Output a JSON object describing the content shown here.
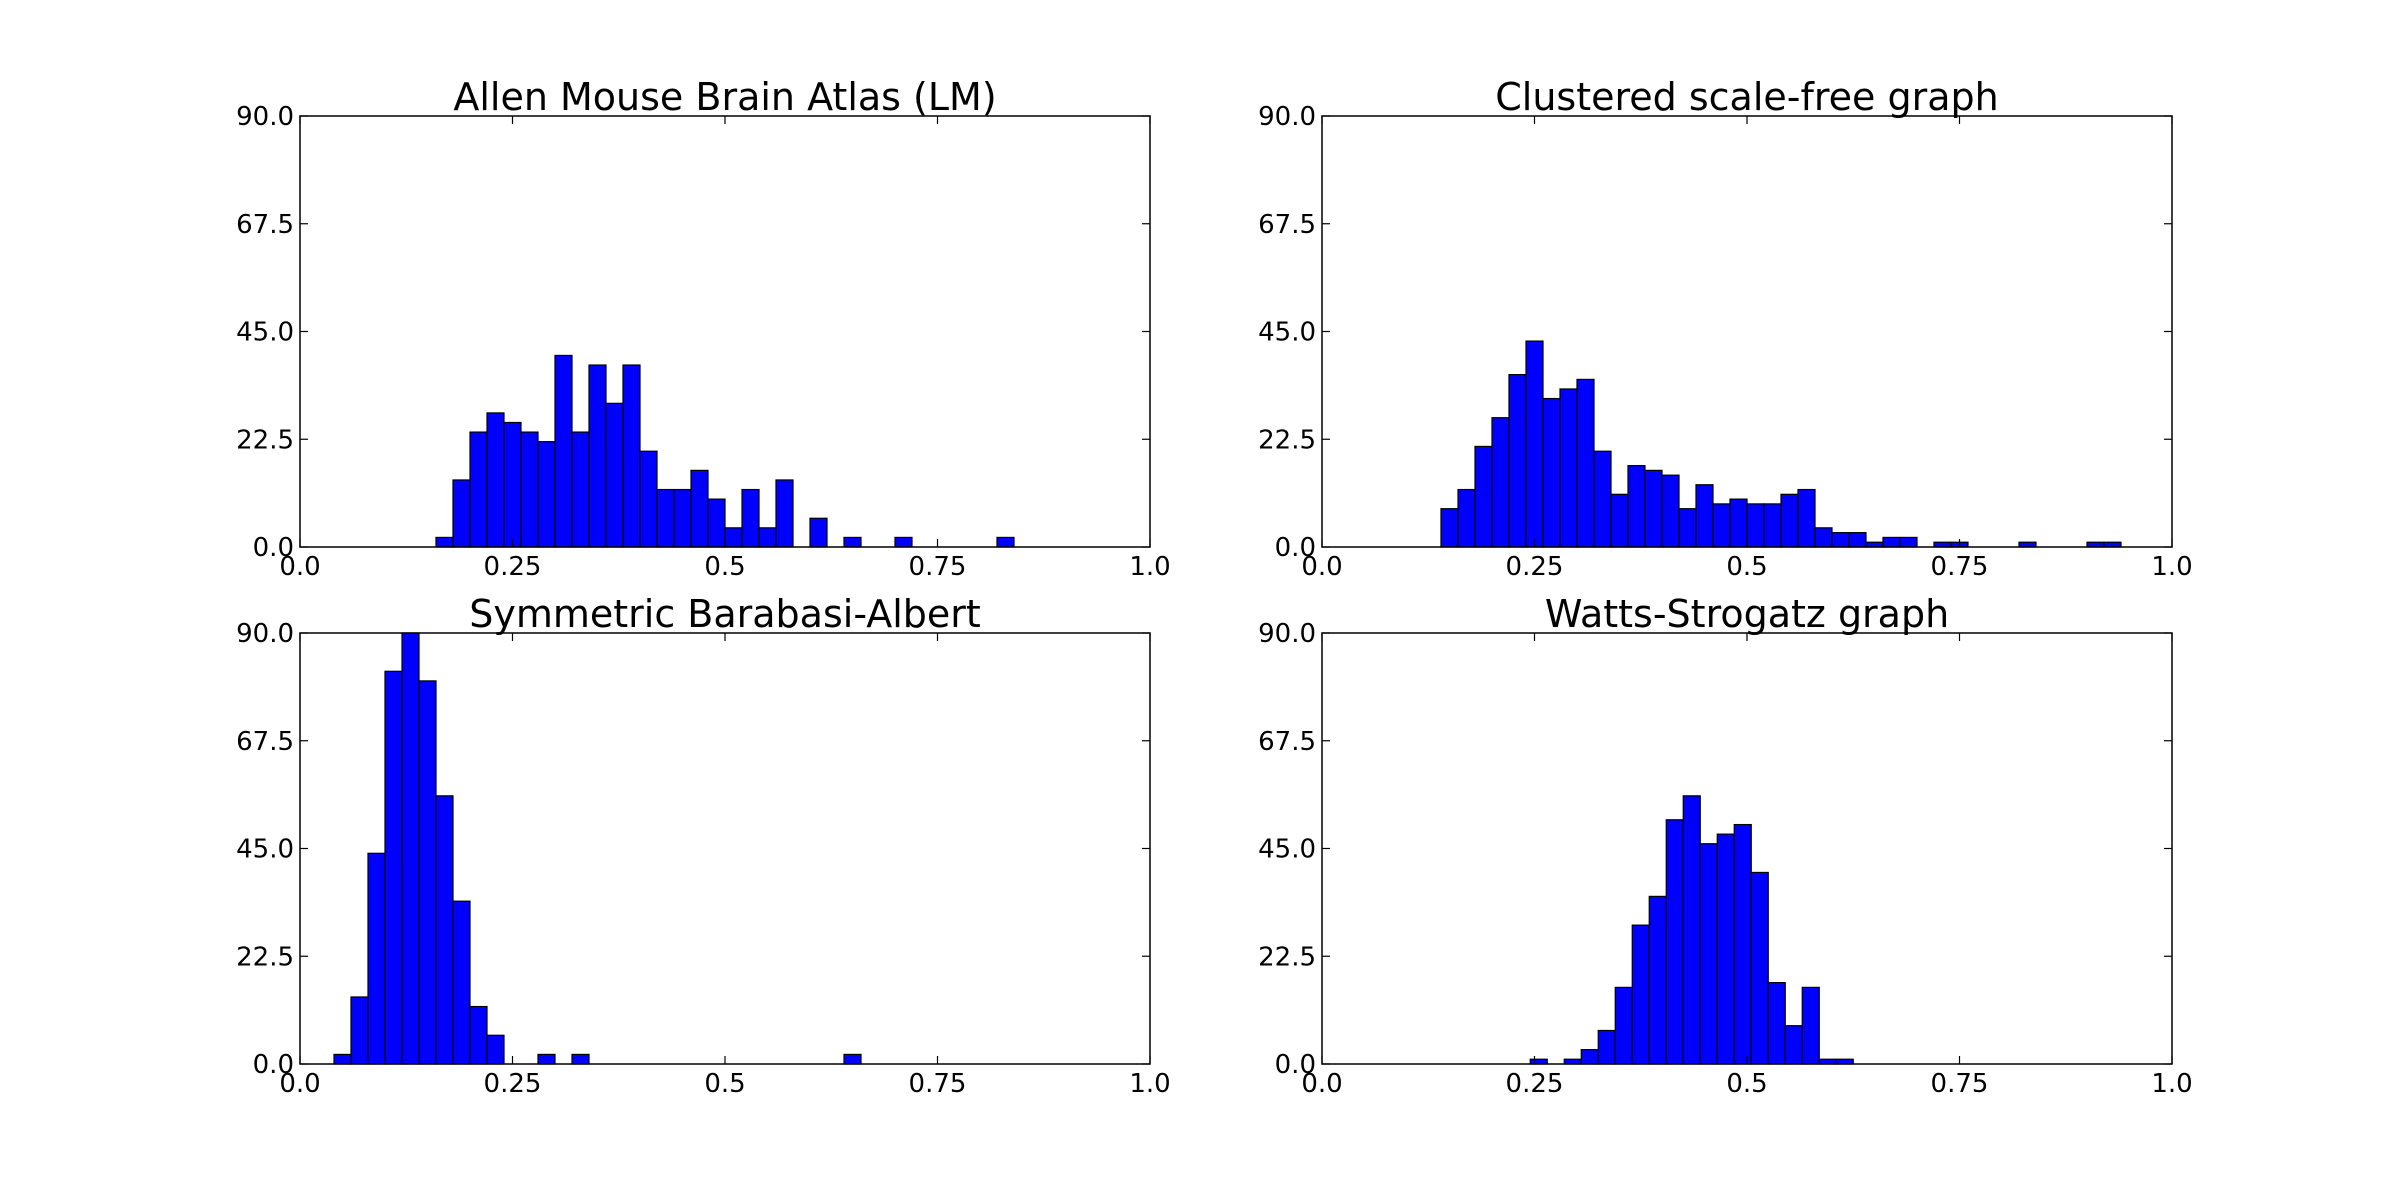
{
  "figure": {
    "background": "#ffffff"
  },
  "chart_data": [
    {
      "type": "bar",
      "title": "Allen Mouse Brain Atlas (LM)",
      "xlabel": "",
      "ylabel": "",
      "xlim": [
        0.0,
        1.0
      ],
      "ylim": [
        0.0,
        90.0
      ],
      "xticks": [
        0.0,
        0.25,
        0.5,
        0.75,
        1.0
      ],
      "xtick_labels": [
        "0.0",
        "0.25",
        "0.5",
        "0.75",
        "1.0"
      ],
      "yticks": [
        0.0,
        22.5,
        45.0,
        67.5,
        90.0
      ],
      "ytick_labels": [
        "0.0",
        "22.5",
        "45.0",
        "67.5",
        "90.0"
      ],
      "bar_color": "#0000ff",
      "bin_width": 0.02,
      "bin_starts": [
        0.16,
        0.18,
        0.2,
        0.22,
        0.24,
        0.26,
        0.28,
        0.3,
        0.32,
        0.34,
        0.36,
        0.38,
        0.4,
        0.42,
        0.44,
        0.46,
        0.48,
        0.5,
        0.52,
        0.54,
        0.56,
        0.58,
        0.6,
        0.62,
        0.64,
        0.66,
        0.68,
        0.7,
        0.72,
        0.74,
        0.76,
        0.78,
        0.8,
        0.82
      ],
      "values": [
        2,
        14,
        24,
        28,
        26,
        24,
        22,
        40,
        24,
        38,
        30,
        38,
        20,
        12,
        12,
        16,
        10,
        4,
        12,
        4,
        14,
        0,
        6,
        0,
        2,
        0,
        0,
        2,
        0,
        0,
        0,
        0,
        0,
        2
      ]
    },
    {
      "type": "bar",
      "title": "Clustered scale-free graph",
      "xlabel": "",
      "ylabel": "",
      "xlim": [
        0.0,
        1.0
      ],
      "ylim": [
        0.0,
        90.0
      ],
      "xticks": [
        0.0,
        0.25,
        0.5,
        0.75,
        1.0
      ],
      "xtick_labels": [
        "0.0",
        "0.25",
        "0.5",
        "0.75",
        "1.0"
      ],
      "yticks": [
        0.0,
        22.5,
        45.0,
        67.5,
        90.0
      ],
      "ytick_labels": [
        "0.0",
        "22.5",
        "45.0",
        "67.5",
        "90.0"
      ],
      "bar_color": "#0000ff",
      "bin_width": 0.02,
      "bin_starts": [
        0.14,
        0.16,
        0.18,
        0.2,
        0.22,
        0.24,
        0.26,
        0.28,
        0.3,
        0.32,
        0.34,
        0.36,
        0.38,
        0.4,
        0.42,
        0.44,
        0.46,
        0.48,
        0.5,
        0.52,
        0.54,
        0.56,
        0.58,
        0.6,
        0.62,
        0.64,
        0.66,
        0.68,
        0.7,
        0.72,
        0.74,
        0.76,
        0.78,
        0.8,
        0.82,
        0.84,
        0.86,
        0.88,
        0.9,
        0.92
      ],
      "values": [
        8,
        12,
        21,
        27,
        36,
        43,
        31,
        33,
        35,
        20,
        11,
        17,
        16,
        15,
        8,
        13,
        9,
        10,
        9,
        9,
        11,
        12,
        4,
        3,
        3,
        1,
        2,
        2,
        0,
        1,
        1,
        0,
        0,
        0,
        1,
        0,
        0,
        0,
        1,
        1
      ]
    },
    {
      "type": "bar",
      "title": "Symmetric Barabasi-Albert",
      "xlabel": "",
      "ylabel": "",
      "xlim": [
        0.0,
        1.0
      ],
      "ylim": [
        0.0,
        90.0
      ],
      "xticks": [
        0.0,
        0.25,
        0.5,
        0.75,
        1.0
      ],
      "xtick_labels": [
        "0.0",
        "0.25",
        "0.5",
        "0.75",
        "1.0"
      ],
      "yticks": [
        0.0,
        22.5,
        45.0,
        67.5,
        90.0
      ],
      "ytick_labels": [
        "0.0",
        "22.5",
        "45.0",
        "67.5",
        "90.0"
      ],
      "bar_color": "#0000ff",
      "bin_width": 0.02,
      "bin_starts": [
        0.04,
        0.06,
        0.08,
        0.1,
        0.12,
        0.14,
        0.16,
        0.18,
        0.2,
        0.22,
        0.24,
        0.26,
        0.28,
        0.3,
        0.32,
        0.34,
        0.36,
        0.38,
        0.4,
        0.42,
        0.44,
        0.46,
        0.48,
        0.5,
        0.52,
        0.54,
        0.56,
        0.58,
        0.6,
        0.62,
        0.64
      ],
      "values": [
        2,
        14,
        44,
        82,
        90,
        80,
        56,
        34,
        12,
        6,
        0,
        0,
        2,
        0,
        2,
        0,
        0,
        0,
        0,
        0,
        0,
        0,
        0,
        0,
        0,
        0,
        0,
        0,
        0,
        0,
        2
      ]
    },
    {
      "type": "bar",
      "title": "Watts-Strogatz graph",
      "xlabel": "",
      "ylabel": "",
      "xlim": [
        0.0,
        1.0
      ],
      "ylim": [
        0.0,
        90.0
      ],
      "xticks": [
        0.0,
        0.25,
        0.5,
        0.75,
        1.0
      ],
      "xtick_labels": [
        "0.0",
        "0.25",
        "0.5",
        "0.75",
        "1.0"
      ],
      "yticks": [
        0.0,
        22.5,
        45.0,
        67.5,
        90.0
      ],
      "ytick_labels": [
        "0.0",
        "22.5",
        "45.0",
        "67.5",
        "90.0"
      ],
      "bar_color": "#0000ff",
      "bin_width": 0.02,
      "bin_starts": [
        0.245,
        0.265,
        0.285,
        0.305,
        0.325,
        0.345,
        0.365,
        0.385,
        0.405,
        0.425,
        0.445,
        0.465,
        0.485,
        0.505,
        0.525,
        0.545,
        0.565,
        0.585,
        0.605
      ],
      "values": [
        1,
        0,
        1,
        3,
        7,
        16,
        29,
        35,
        51,
        56,
        46,
        48,
        50,
        40,
        17,
        8,
        16,
        1,
        1
      ]
    }
  ]
}
